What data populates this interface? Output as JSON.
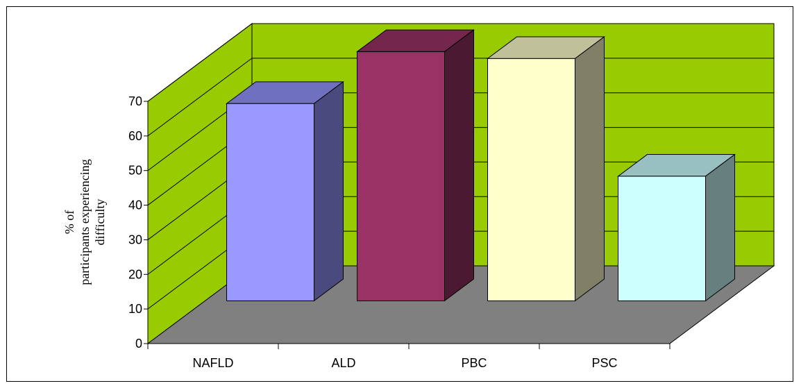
{
  "chart_data": {
    "type": "bar",
    "style": "3d-column",
    "categories": [
      "NAFLD",
      "ALD",
      "PBC",
      "PSC"
    ],
    "series": [
      {
        "values": [
          57,
          72,
          70,
          36
        ]
      }
    ],
    "ylabel_lines": [
      "% of",
      "participants experiencing",
      "difficulty"
    ],
    "ylim": [
      0,
      70
    ],
    "yticks": [
      0,
      10,
      20,
      30,
      40,
      50,
      60,
      70
    ],
    "grid": true,
    "legend": "none",
    "colors": {
      "wall": "#99cc00",
      "floor": "#808080",
      "bars": [
        {
          "front": "#9999ff",
          "top": "#7070c0",
          "side": "#4a4a7e"
        },
        {
          "front": "#993366",
          "top": "#74264d",
          "side": "#4c1933"
        },
        {
          "front": "#ffffcc",
          "top": "#c0c09a",
          "side": "#808066"
        },
        {
          "front": "#ccffff",
          "top": "#99c0c0",
          "side": "#668080"
        }
      ]
    }
  }
}
